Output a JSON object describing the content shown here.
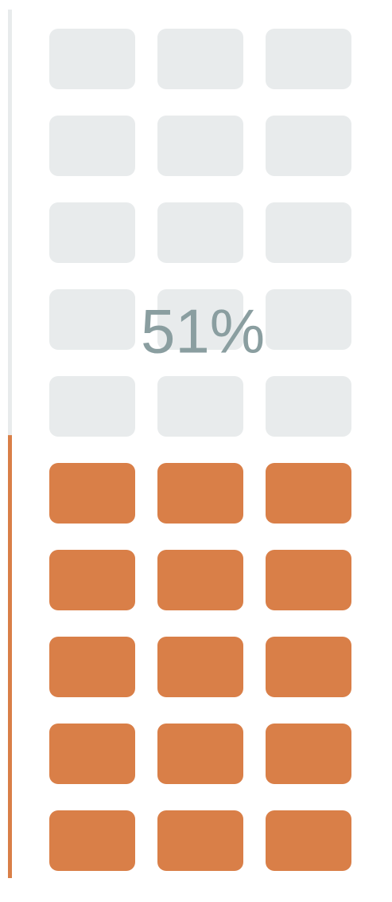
{
  "chart_data": {
    "type": "gauge",
    "values": [
      51
    ],
    "value_labels": [
      "51%"
    ],
    "ylim": [
      0,
      100
    ],
    "color": "#d97f48",
    "track_color": "#e8ebec"
  }
}
